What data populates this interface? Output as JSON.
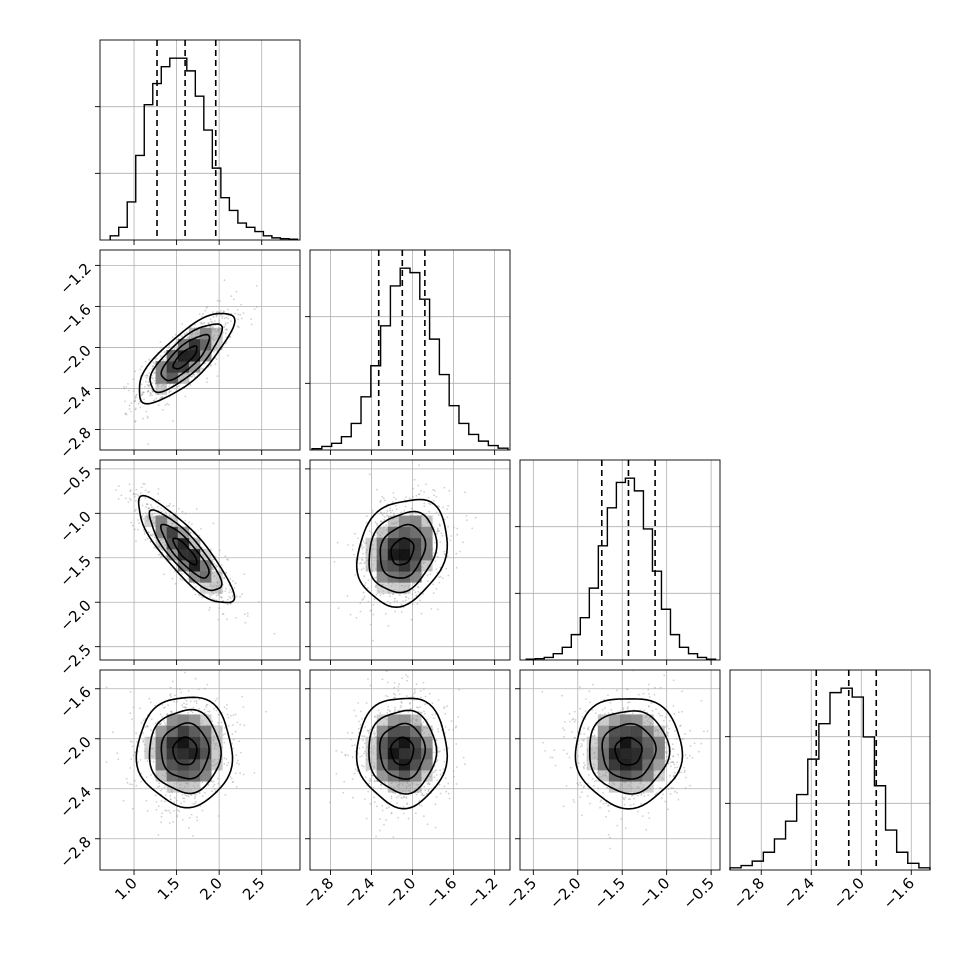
{
  "chart_data": {
    "type": "corner",
    "n_params": 4,
    "grid": true,
    "parameters": [
      {
        "range": [
          0.6,
          2.95
        ],
        "ticks": [
          1.0,
          1.5,
          2.0,
          2.5
        ],
        "tick_labels": [
          "1.0",
          "1.5",
          "2.0",
          "2.5"
        ]
      },
      {
        "range": [
          -3.0,
          -1.05
        ],
        "ticks": [
          -2.8,
          -2.4,
          -2.0,
          -1.6,
          -1.2
        ],
        "tick_labels": [
          "−2.8",
          "−2.4",
          "−2.0",
          "−1.6",
          "−1.2"
        ]
      },
      {
        "range": [
          -2.65,
          -0.4
        ],
        "ticks": [
          -2.5,
          -2.0,
          -1.5,
          -1.0,
          -0.5
        ],
        "tick_labels": [
          "−2.5",
          "−2.0",
          "−1.5",
          "−1.0",
          "−0.5"
        ]
      },
      {
        "range": [
          -3.05,
          -1.45
        ],
        "ticks": [
          -2.8,
          -2.4,
          -2.0,
          -1.6
        ],
        "tick_labels": [
          "−2.8",
          "−2.4",
          "−2.0",
          "−1.6"
        ]
      }
    ],
    "marginals": [
      {
        "param": 0,
        "quantiles": [
          1.27,
          1.6,
          1.96
        ],
        "edges": [
          0.72,
          2.92
        ],
        "counts": [
          1,
          3,
          9,
          20,
          32,
          37,
          41,
          43,
          43,
          40,
          34,
          26,
          17,
          10,
          7,
          4,
          3,
          2,
          1,
          0.5,
          0.3,
          0.2
        ]
      },
      {
        "param": 1,
        "quantiles": [
          -2.33,
          -2.1,
          -1.88
        ],
        "edges": [
          -2.98,
          -1.07
        ],
        "counts": [
          0.3,
          0.8,
          1.5,
          3,
          6,
          12,
          19,
          28,
          37,
          41,
          40,
          34,
          25,
          17,
          10,
          6,
          3.5,
          2,
          1,
          0.4
        ]
      },
      {
        "param": 2,
        "quantiles": [
          -1.73,
          -1.43,
          -1.13
        ],
        "edges": [
          -2.58,
          -0.45
        ],
        "counts": [
          0.2,
          0.3,
          0.6,
          1.5,
          3,
          6,
          10,
          17,
          27,
          36,
          42,
          43,
          40,
          31,
          21,
          12,
          6,
          3,
          1.5,
          0.6,
          0.2
        ]
      },
      {
        "param": 3,
        "quantiles": [
          -2.36,
          -2.1,
          -1.88
        ],
        "edges": [
          -3.05,
          -1.45
        ],
        "counts": [
          0.5,
          1,
          2,
          4,
          7,
          11,
          17,
          25,
          33,
          40,
          41,
          39,
          30,
          19,
          9,
          4,
          1.5,
          0.5
        ]
      }
    ],
    "pairs": [
      {
        "x": 0,
        "y": 1,
        "center": [
          1.6,
          -2.1
        ],
        "sd": [
          0.28,
          0.22
        ],
        "corr": 0.78
      },
      {
        "x": 0,
        "y": 2,
        "center": [
          1.6,
          -1.43
        ],
        "sd": [
          0.28,
          0.3
        ],
        "corr": -0.85
      },
      {
        "x": 1,
        "y": 2,
        "center": [
          -2.1,
          -1.43
        ],
        "sd": [
          0.22,
          0.3
        ],
        "corr": 0.2
      },
      {
        "x": 0,
        "y": 3,
        "center": [
          1.6,
          -2.1
        ],
        "sd": [
          0.28,
          0.22
        ],
        "corr": 0.0
      },
      {
        "x": 1,
        "y": 3,
        "center": [
          -2.1,
          -2.1
        ],
        "sd": [
          0.22,
          0.22
        ],
        "corr": 0.0
      },
      {
        "x": 2,
        "y": 3,
        "center": [
          -1.43,
          -2.1
        ],
        "sd": [
          0.3,
          0.22
        ],
        "corr": 0.0
      }
    ],
    "contour_levels_sigma": [
      0.5,
      1.0,
      1.5,
      2.0
    ]
  },
  "style": {
    "line_color": "#000000",
    "grid_color": "#b0b0b0",
    "point_color": "#9a9a9a"
  }
}
